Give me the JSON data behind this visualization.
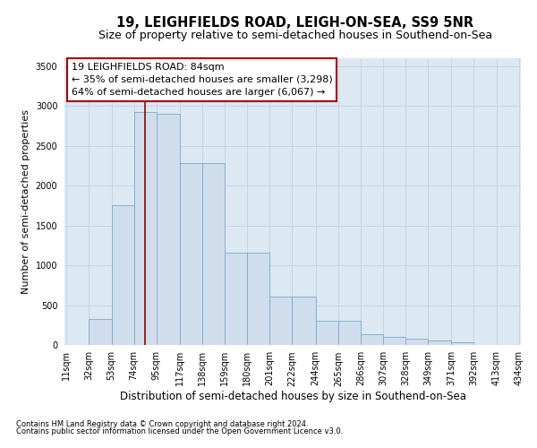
{
  "title": "19, LEIGHFIELDS ROAD, LEIGH-ON-SEA, SS9 5NR",
  "subtitle": "Size of property relative to semi-detached houses in Southend-on-Sea",
  "xlabel": "Distribution of semi-detached houses by size in Southend-on-Sea",
  "ylabel": "Number of semi-detached properties",
  "footnote1": "Contains HM Land Registry data © Crown copyright and database right 2024.",
  "footnote2": "Contains public sector information licensed under the Open Government Licence v3.0.",
  "annotation_title": "19 LEIGHFIELDS ROAD: 84sqm",
  "annotation_line2": "← 35% of semi-detached houses are smaller (3,298)",
  "annotation_line3": "64% of semi-detached houses are larger (6,067) →",
  "property_size": 84,
  "bar_edges": [
    11,
    32,
    53,
    74,
    95,
    117,
    138,
    159,
    180,
    201,
    222,
    244,
    265,
    286,
    307,
    328,
    349,
    371,
    392,
    413,
    434
  ],
  "bar_heights": [
    5,
    330,
    1750,
    2920,
    2900,
    2280,
    2280,
    1160,
    1160,
    610,
    610,
    300,
    300,
    130,
    100,
    75,
    60,
    35,
    5,
    0
  ],
  "bar_color": "#cfdded",
  "bar_edge_color": "#7aaac8",
  "vline_color": "#990000",
  "vline_x": 84,
  "ylim": [
    0,
    3600
  ],
  "yticks": [
    0,
    500,
    1000,
    1500,
    2000,
    2500,
    3000,
    3500
  ],
  "grid_color": "#c5d5e5",
  "bg_color": "#dce8f2",
  "annotation_box_color": "#ffffff",
  "annotation_box_edge": "#aa0000",
  "title_fontsize": 10.5,
  "subtitle_fontsize": 9,
  "xlabel_fontsize": 8.5,
  "ylabel_fontsize": 8,
  "tick_fontsize": 7,
  "annotation_fontsize": 8,
  "footnote_fontsize": 6
}
